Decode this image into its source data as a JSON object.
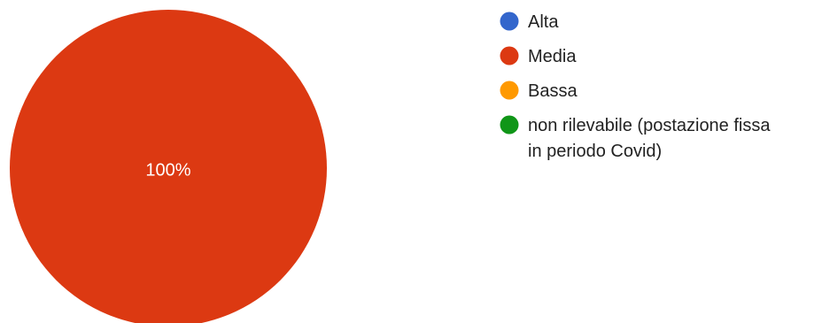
{
  "chart_data": {
    "type": "pie",
    "categories": [
      "Alta",
      "Media",
      "Bassa",
      "non rilevabile (postazione fissa in periodo Covid)"
    ],
    "values": [
      0,
      100,
      0,
      0
    ],
    "unit": "%",
    "slice_labels": [
      "",
      "100%",
      "",
      ""
    ],
    "colors": [
      "#3366cc",
      "#dc3912",
      "#ff9900",
      "#109618"
    ],
    "legend_position": "right",
    "legend": [
      {
        "label": "Alta",
        "color": "#3366cc"
      },
      {
        "label": "Media",
        "color": "#dc3912"
      },
      {
        "label": "Bassa",
        "color": "#ff9900"
      },
      {
        "label": "non rilevabile (postazione fissa in periodo Covid)",
        "label_lines": [
          "non rilevabile (postazione fissa",
          "in periodo Covid)"
        ],
        "color": "#109618"
      }
    ]
  }
}
